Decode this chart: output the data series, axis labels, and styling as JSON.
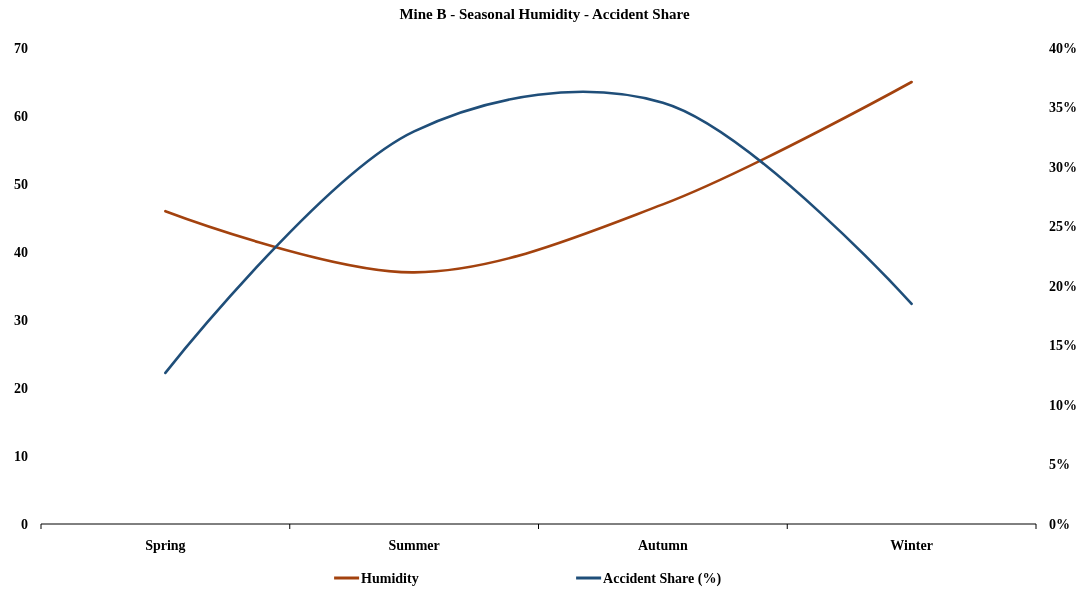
{
  "chart_data": {
    "type": "line",
    "title": "Mine B - Seasonal Humidity - Accident Share",
    "categories": [
      "Spring",
      "Summer",
      "Autumn",
      "Winter"
    ],
    "series": [
      {
        "name": "Humidity",
        "color": "#a3420e",
        "values": [
          46,
          37,
          47,
          65
        ]
      },
      {
        "name": "Accident Share (%)",
        "color": "#1f4e79",
        "values": [
          12.7,
          33,
          35.4,
          18.5
        ],
        "axis": "y2"
      }
    ],
    "ylim": [
      0,
      70
    ],
    "yticks": [
      0,
      10,
      20,
      30,
      40,
      50,
      60,
      70
    ],
    "y2lim": [
      0,
      40
    ],
    "y2ticks": [
      {
        "value": 0,
        "label": "0%"
      },
      {
        "value": 5,
        "label": "5%"
      },
      {
        "value": 10,
        "label": "10%"
      },
      {
        "value": 15,
        "label": "15%"
      },
      {
        "value": 20,
        "label": "20%"
      },
      {
        "value": 25,
        "label": "25%"
      },
      {
        "value": 30,
        "label": "30%"
      },
      {
        "value": 35,
        "label": "35%"
      },
      {
        "value": 40,
        "label": "40%"
      }
    ],
    "legend": "bottom"
  }
}
